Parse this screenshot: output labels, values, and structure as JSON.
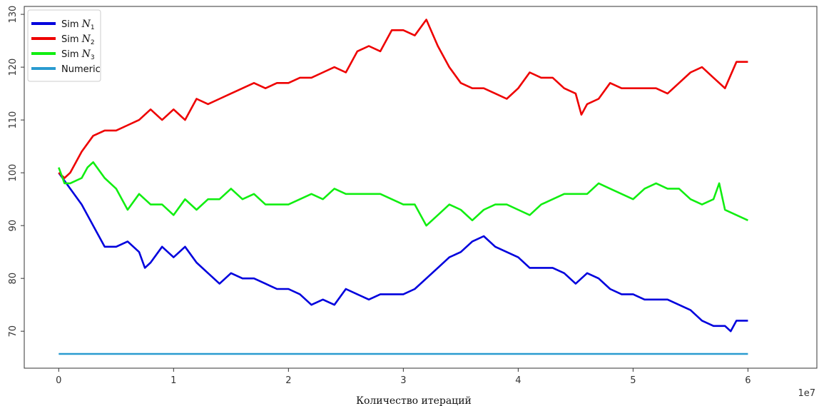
{
  "chart_data": {
    "type": "line",
    "title": "",
    "xlabel": "Количество итераций",
    "ylabel": "",
    "x_offset_label": "1e7",
    "xlim": [
      -0.3,
      6.6
    ],
    "ylim": [
      63,
      131.5
    ],
    "x_ticks": [
      0,
      1,
      2,
      3,
      4,
      5,
      6
    ],
    "x_tick_labels": [
      "0",
      "1",
      "2",
      "3",
      "4",
      "5",
      "6"
    ],
    "y_ticks": [
      70,
      80,
      90,
      100,
      110,
      120,
      130
    ],
    "y_tick_labels": [
      "70",
      "80",
      "90",
      "100",
      "110",
      "120",
      "130"
    ],
    "grid": false,
    "legend_placement": "top-left",
    "series": [
      {
        "name": "Sim N1",
        "legend_prefix": "Sim",
        "legend_var": "N",
        "legend_sub": "1",
        "color": "#0000dd",
        "x": [
          0,
          0.1,
          0.2,
          0.3,
          0.4,
          0.5,
          0.6,
          0.7,
          0.75,
          0.8,
          0.9,
          1.0,
          1.1,
          1.2,
          1.3,
          1.4,
          1.5,
          1.6,
          1.7,
          1.8,
          1.9,
          2.0,
          2.1,
          2.2,
          2.3,
          2.4,
          2.5,
          2.6,
          2.7,
          2.8,
          2.9,
          3.0,
          3.1,
          3.2,
          3.3,
          3.4,
          3.5,
          3.6,
          3.7,
          3.8,
          3.9,
          4.0,
          4.1,
          4.2,
          4.3,
          4.4,
          4.5,
          4.6,
          4.7,
          4.8,
          4.9,
          5.0,
          5.1,
          5.2,
          5.3,
          5.4,
          5.5,
          5.6,
          5.7,
          5.8,
          5.85,
          5.9,
          6.0
        ],
        "y": [
          100,
          97,
          94,
          90,
          86,
          86,
          87,
          85,
          82,
          83,
          86,
          84,
          86,
          83,
          81,
          79,
          81,
          80,
          80,
          79,
          78,
          78,
          77,
          75,
          76,
          75,
          78,
          77,
          76,
          77,
          77,
          77,
          78,
          80,
          82,
          84,
          85,
          87,
          88,
          86,
          85,
          84,
          82,
          82,
          82,
          81,
          79,
          81,
          80,
          78,
          77,
          77,
          76,
          76,
          76,
          75,
          74,
          72,
          71,
          71,
          70,
          72,
          72
        ]
      },
      {
        "name": "Sim N2",
        "legend_prefix": "Sim",
        "legend_var": "N",
        "legend_sub": "2",
        "color": "#ee0000",
        "x": [
          0,
          0.05,
          0.1,
          0.2,
          0.3,
          0.4,
          0.5,
          0.6,
          0.7,
          0.8,
          0.9,
          1.0,
          1.1,
          1.2,
          1.3,
          1.4,
          1.5,
          1.6,
          1.7,
          1.8,
          1.9,
          2.0,
          2.1,
          2.2,
          2.3,
          2.4,
          2.5,
          2.6,
          2.7,
          2.8,
          2.9,
          3.0,
          3.1,
          3.2,
          3.3,
          3.4,
          3.5,
          3.6,
          3.7,
          3.8,
          3.9,
          4.0,
          4.1,
          4.2,
          4.3,
          4.4,
          4.5,
          4.55,
          4.6,
          4.7,
          4.8,
          4.9,
          5.0,
          5.1,
          5.2,
          5.3,
          5.4,
          5.5,
          5.6,
          5.7,
          5.8,
          5.9,
          6.0
        ],
        "y": [
          100,
          99,
          100,
          104,
          107,
          108,
          108,
          109,
          110,
          112,
          110,
          112,
          110,
          114,
          113,
          114,
          115,
          116,
          117,
          116,
          117,
          117,
          118,
          118,
          119,
          120,
          119,
          123,
          124,
          123,
          127,
          127,
          126,
          129,
          124,
          120,
          117,
          116,
          116,
          115,
          114,
          116,
          119,
          118,
          118,
          116,
          115,
          111,
          113,
          114,
          117,
          116,
          116,
          116,
          116,
          115,
          117,
          119,
          120,
          118,
          116,
          121,
          121
        ]
      },
      {
        "name": "Sim N3",
        "legend_prefix": "Sim",
        "legend_var": "N",
        "legend_sub": "3",
        "color": "#11ee11",
        "x": [
          0,
          0.05,
          0.1,
          0.2,
          0.25,
          0.3,
          0.4,
          0.5,
          0.6,
          0.7,
          0.8,
          0.9,
          1.0,
          1.1,
          1.2,
          1.3,
          1.4,
          1.5,
          1.6,
          1.7,
          1.8,
          1.9,
          2.0,
          2.1,
          2.2,
          2.3,
          2.4,
          2.5,
          2.6,
          2.7,
          2.8,
          2.9,
          3.0,
          3.1,
          3.2,
          3.3,
          3.4,
          3.5,
          3.6,
          3.7,
          3.8,
          3.9,
          4.0,
          4.1,
          4.2,
          4.3,
          4.4,
          4.5,
          4.6,
          4.7,
          4.8,
          4.9,
          5.0,
          5.1,
          5.2,
          5.3,
          5.4,
          5.5,
          5.6,
          5.7,
          5.75,
          5.8,
          5.9,
          6.0
        ],
        "y": [
          101,
          98,
          98,
          99,
          101,
          102,
          99,
          97,
          93,
          96,
          94,
          94,
          92,
          95,
          93,
          95,
          95,
          97,
          95,
          96,
          94,
          94,
          94,
          95,
          96,
          95,
          97,
          96,
          96,
          96,
          96,
          95,
          94,
          94,
          90,
          92,
          94,
          93,
          91,
          93,
          94,
          94,
          93,
          92,
          94,
          95,
          96,
          96,
          96,
          98,
          97,
          96,
          95,
          97,
          98,
          97,
          97,
          95,
          94,
          95,
          98,
          93,
          92,
          91
        ]
      },
      {
        "name": "Numeric",
        "color": "#2a9bd0",
        "x": [
          0,
          6.0
        ],
        "y": [
          65.7,
          65.7
        ]
      }
    ]
  }
}
